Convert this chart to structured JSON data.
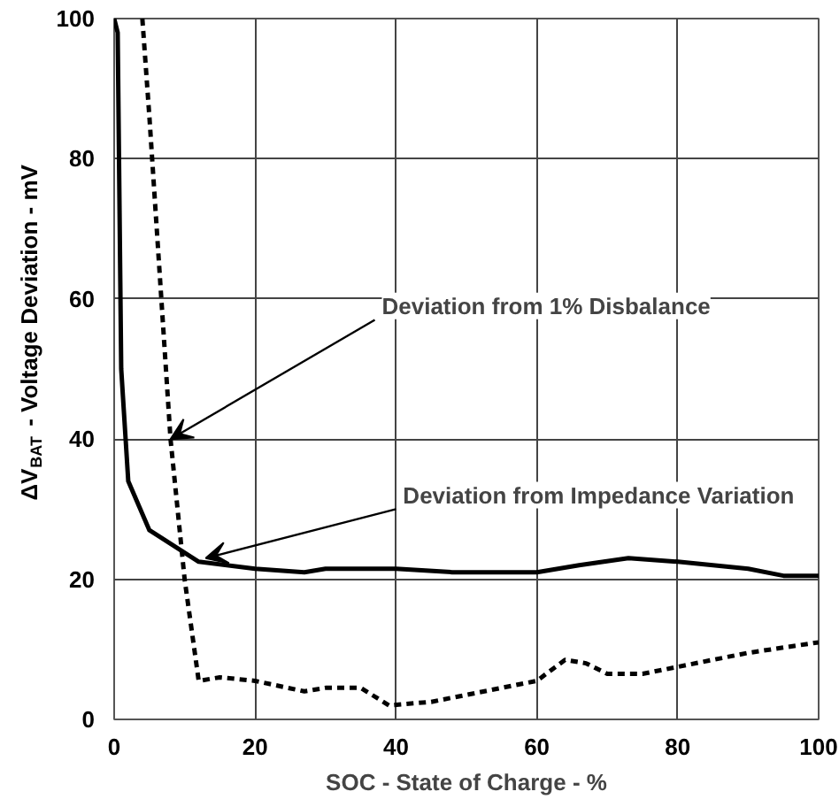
{
  "chart_data": {
    "type": "line",
    "xlabel": "SOC - State of Charge - %",
    "ylabel": "ΔV$_{BAT}$ - Voltage Deviation - mV",
    "xlim": [
      0,
      100
    ],
    "ylim": [
      0,
      100
    ],
    "xticks": [
      0,
      20,
      40,
      60,
      80,
      100
    ],
    "yticks": [
      0,
      20,
      40,
      60,
      80,
      100
    ],
    "grid": true,
    "series": [
      {
        "color": "#000000",
        "line_style": "solid",
        "x": [
          0,
          0.5,
          1,
          2,
          5,
          12,
          20,
          27,
          30,
          40,
          48,
          60,
          66,
          73,
          80,
          90,
          95,
          100
        ],
        "values": [
          100,
          98,
          50,
          34,
          27,
          22.5,
          21.5,
          21,
          21.5,
          21.5,
          21,
          21,
          22,
          23,
          22.5,
          21.5,
          20.5,
          20.5
        ]
      },
      {
        "color": "#000000",
        "line_style": "dashed",
        "x": [
          4,
          5,
          8,
          10,
          12,
          15,
          20,
          27,
          30,
          35,
          39,
          45,
          50,
          55,
          60,
          64,
          67,
          70,
          75,
          80,
          90,
          100
        ],
        "values": [
          100,
          86,
          40,
          20,
          5.5,
          6,
          5.5,
          4,
          4.5,
          4.5,
          2,
          2.5,
          3.5,
          4.5,
          5.5,
          8.5,
          8,
          6.5,
          6.5,
          7.5,
          9.5,
          11
        ]
      }
    ],
    "annotations": [
      {
        "text": "Deviation from 1% Disbalance",
        "x": 8,
        "y": 40
      },
      {
        "text": "Deviation from Impedance Variation",
        "x": 13,
        "y": 23
      }
    ]
  }
}
